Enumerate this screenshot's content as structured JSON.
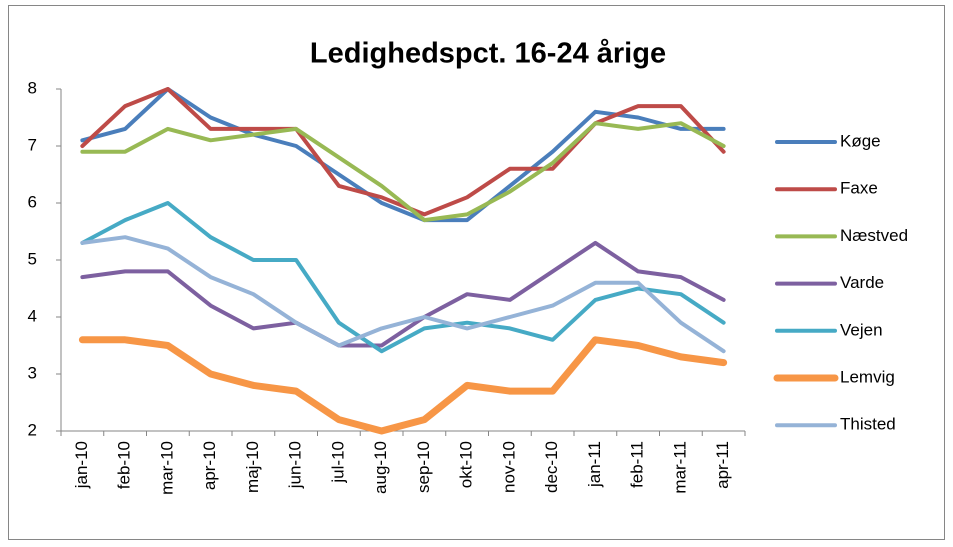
{
  "chart_data": {
    "type": "line",
    "title": "Ledighedspct. 16-24 årige",
    "categories": [
      "jan-10",
      "feb-10",
      "mar-10",
      "apr-10",
      "maj-10",
      "jun-10",
      "jul-10",
      "aug-10",
      "sep-10",
      "okt-10",
      "nov-10",
      "dec-10",
      "jan-11",
      "feb-11",
      "mar-11",
      "apr-11"
    ],
    "series": [
      {
        "name": "Køge",
        "color": "#4a7ebb",
        "values": [
          7.1,
          7.3,
          8.0,
          7.5,
          7.2,
          7.0,
          6.5,
          6.0,
          5.7,
          5.7,
          6.3,
          6.9,
          7.6,
          7.5,
          7.3,
          7.3
        ]
      },
      {
        "name": "Faxe",
        "color": "#be4b48",
        "values": [
          7.0,
          7.7,
          8.0,
          7.3,
          7.3,
          7.3,
          6.3,
          6.1,
          5.8,
          6.1,
          6.6,
          6.6,
          7.4,
          7.7,
          7.7,
          6.9
        ]
      },
      {
        "name": "Næstved",
        "color": "#98b954",
        "values": [
          6.9,
          6.9,
          7.3,
          7.1,
          7.2,
          7.3,
          6.8,
          6.3,
          5.7,
          5.8,
          6.2,
          6.7,
          7.4,
          7.3,
          7.4,
          7.0
        ]
      },
      {
        "name": "Varde",
        "color": "#7d60a0",
        "values": [
          4.7,
          4.8,
          4.8,
          4.2,
          3.8,
          3.9,
          3.5,
          3.5,
          4.0,
          4.4,
          4.3,
          4.8,
          5.3,
          4.8,
          4.7,
          4.3
        ]
      },
      {
        "name": "Vejen",
        "color": "#46aac5",
        "values": [
          5.3,
          5.7,
          6.0,
          5.4,
          5.0,
          5.0,
          3.9,
          3.4,
          3.8,
          3.9,
          3.8,
          3.6,
          4.3,
          4.5,
          4.4,
          3.9
        ]
      },
      {
        "name": "Lemvig",
        "color": "#f79646",
        "values": [
          3.6,
          3.6,
          3.5,
          3.0,
          2.8,
          2.7,
          2.2,
          2.0,
          2.2,
          2.8,
          2.7,
          2.7,
          3.6,
          3.5,
          3.3,
          3.2
        ]
      },
      {
        "name": "Thisted",
        "color": "#95b3d7",
        "values": [
          5.3,
          5.4,
          5.2,
          4.7,
          4.4,
          3.9,
          3.5,
          3.8,
          4.0,
          3.8,
          4.0,
          4.2,
          4.6,
          4.6,
          3.9,
          3.4
        ]
      }
    ],
    "ylim": [
      2,
      8
    ],
    "yticks": [
      2,
      3,
      4,
      5,
      6,
      7,
      8
    ],
    "legend": "right"
  }
}
